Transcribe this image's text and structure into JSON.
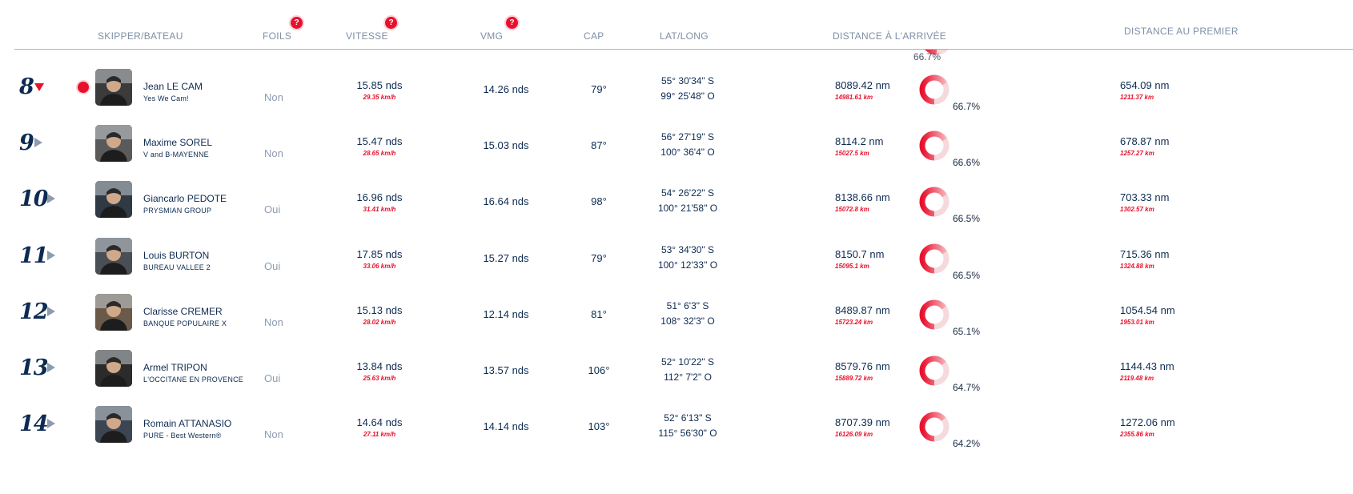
{
  "columns": {
    "skipper": "SKIPPER/BATEAU",
    "foils": "FOILS",
    "speed": "VITESSE",
    "vmg": "VMG",
    "cap": "CAP",
    "latlong": "LAT/LONG",
    "distance_finish": "DISTANCE À L'ARRIVÉE",
    "distance_leader": "DISTANCE AU PREMIER"
  },
  "help_glyph": "?",
  "colors": {
    "accent_red": "#e8112d",
    "navy": "#0d2b52",
    "muted": "#8e9cb0",
    "donut_track": "#f5d9dc"
  },
  "partial_row": {
    "pct": "66.7%",
    "progress": 0.667
  },
  "rows": [
    {
      "rank": "8",
      "trend": "down",
      "timer_icon": true,
      "skipper": "Jean LE CAM",
      "boat": "Yes We Cam!",
      "foils": "Non",
      "speed": "15.85 nds",
      "speed_km": "29.35 km/h",
      "vmg": "14.26 nds",
      "cap": "79°",
      "lat": "55° 30'34\" S",
      "long": "99° 25'48\" O",
      "dist_nm": "8089.42 nm",
      "dist_km": "14981.61 km",
      "pct": "66.7%",
      "progress": 0.667,
      "lead_nm": "654.09 nm",
      "lead_km": "1211.37 km"
    },
    {
      "rank": "9",
      "trend": "flat",
      "timer_icon": false,
      "skipper": "Maxime SOREL",
      "boat": "V and B-MAYENNE",
      "foils": "Non",
      "speed": "15.47 nds",
      "speed_km": "28.65 km/h",
      "vmg": "15.03 nds",
      "cap": "87°",
      "lat": "56° 27'19\" S",
      "long": "100° 36'4\" O",
      "dist_nm": "8114.2 nm",
      "dist_km": "15027.5 km",
      "pct": "66.6%",
      "progress": 0.666,
      "lead_nm": "678.87 nm",
      "lead_km": "1257.27 km"
    },
    {
      "rank": "10",
      "trend": "flat",
      "timer_icon": false,
      "skipper": "Giancarlo PEDOTE",
      "boat": "PRYSMIAN GROUP",
      "foils": "Oui",
      "speed": "16.96 nds",
      "speed_km": "31.41 km/h",
      "vmg": "16.64 nds",
      "cap": "98°",
      "lat": "54° 26'22\" S",
      "long": "100° 21'58\" O",
      "dist_nm": "8138.66 nm",
      "dist_km": "15072.8 km",
      "pct": "66.5%",
      "progress": 0.665,
      "lead_nm": "703.33 nm",
      "lead_km": "1302.57 km"
    },
    {
      "rank": "11",
      "trend": "flat",
      "timer_icon": false,
      "skipper": "Louis BURTON",
      "boat": "BUREAU VALLEE 2",
      "foils": "Oui",
      "speed": "17.85 nds",
      "speed_km": "33.06 km/h",
      "vmg": "15.27 nds",
      "cap": "79°",
      "lat": "53° 34'30\" S",
      "long": "100° 12'33\" O",
      "dist_nm": "8150.7 nm",
      "dist_km": "15095.1 km",
      "pct": "66.5%",
      "progress": 0.665,
      "lead_nm": "715.36 nm",
      "lead_km": "1324.88 km"
    },
    {
      "rank": "12",
      "trend": "flat",
      "timer_icon": false,
      "skipper": "Clarisse CREMER",
      "boat": "BANQUE POPULAIRE X",
      "foils": "Non",
      "speed": "15.13 nds",
      "speed_km": "28.02 km/h",
      "vmg": "12.14 nds",
      "cap": "81°",
      "lat": "51° 6'3\" S",
      "long": "108° 32'3\" O",
      "dist_nm": "8489.87 nm",
      "dist_km": "15723.24 km",
      "pct": "65.1%",
      "progress": 0.651,
      "lead_nm": "1054.54 nm",
      "lead_km": "1953.01 km"
    },
    {
      "rank": "13",
      "trend": "flat",
      "timer_icon": false,
      "skipper": "Armel TRIPON",
      "boat": "L'OCCITANE EN PROVENCE",
      "foils": "Oui",
      "speed": "13.84 nds",
      "speed_km": "25.63 km/h",
      "vmg": "13.57 nds",
      "cap": "106°",
      "lat": "52° 10'22\" S",
      "long": "112° 7'2\" O",
      "dist_nm": "8579.76 nm",
      "dist_km": "15889.72 km",
      "pct": "64.7%",
      "progress": 0.647,
      "lead_nm": "1144.43 nm",
      "lead_km": "2119.48 km"
    },
    {
      "rank": "14",
      "trend": "flat",
      "timer_icon": false,
      "skipper": "Romain ATTANASIO",
      "boat": "PURE - Best Western®",
      "foils": "Non",
      "speed": "14.64 nds",
      "speed_km": "27.11 km/h",
      "vmg": "14.14 nds",
      "cap": "103°",
      "lat": "52° 6'13\" S",
      "long": "115° 56'30\" O",
      "dist_nm": "8707.39 nm",
      "dist_km": "16126.09 km",
      "pct": "64.2%",
      "progress": 0.642,
      "lead_nm": "1272.06 nm",
      "lead_km": "2355.86 km"
    }
  ]
}
